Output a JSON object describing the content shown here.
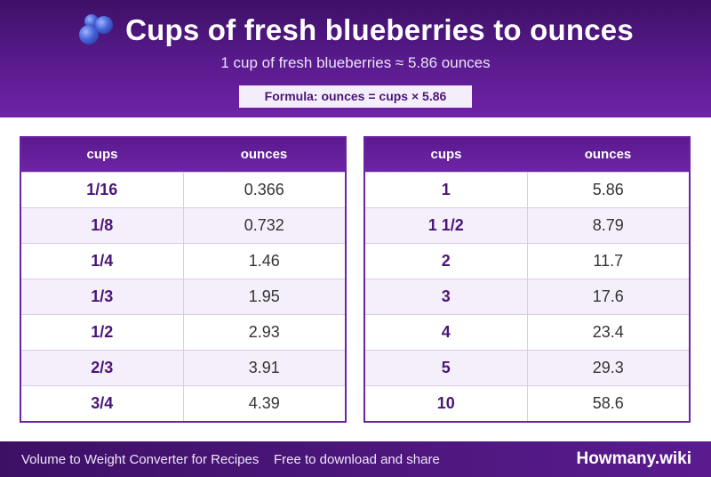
{
  "header": {
    "title": "Cups of fresh blueberries to ounces",
    "subtitle": "1 cup of fresh blueberries ≈ 5.86 ounces",
    "formula": "Formula: ounces = cups × 5.86",
    "icon": "blueberries-icon"
  },
  "tables": [
    {
      "headers": [
        "cups",
        "ounces"
      ],
      "rows": [
        [
          "1/16",
          "0.366"
        ],
        [
          "1/8",
          "0.732"
        ],
        [
          "1/4",
          "1.46"
        ],
        [
          "1/3",
          "1.95"
        ],
        [
          "1/2",
          "2.93"
        ],
        [
          "2/3",
          "3.91"
        ],
        [
          "3/4",
          "4.39"
        ]
      ]
    },
    {
      "headers": [
        "cups",
        "ounces"
      ],
      "rows": [
        [
          "1",
          "5.86"
        ],
        [
          "1 1/2",
          "8.79"
        ],
        [
          "2",
          "11.7"
        ],
        [
          "3",
          "17.6"
        ],
        [
          "4",
          "23.4"
        ],
        [
          "5",
          "29.3"
        ],
        [
          "10",
          "58.6"
        ]
      ]
    }
  ],
  "footer": {
    "left": "Volume to Weight Converter for Recipes",
    "middle": "Free to download and share",
    "brand": "Howmany.wiki"
  },
  "colors": {
    "primary": "#5a1b8f",
    "accent": "#4a1677",
    "stripe": "#f4effa"
  }
}
